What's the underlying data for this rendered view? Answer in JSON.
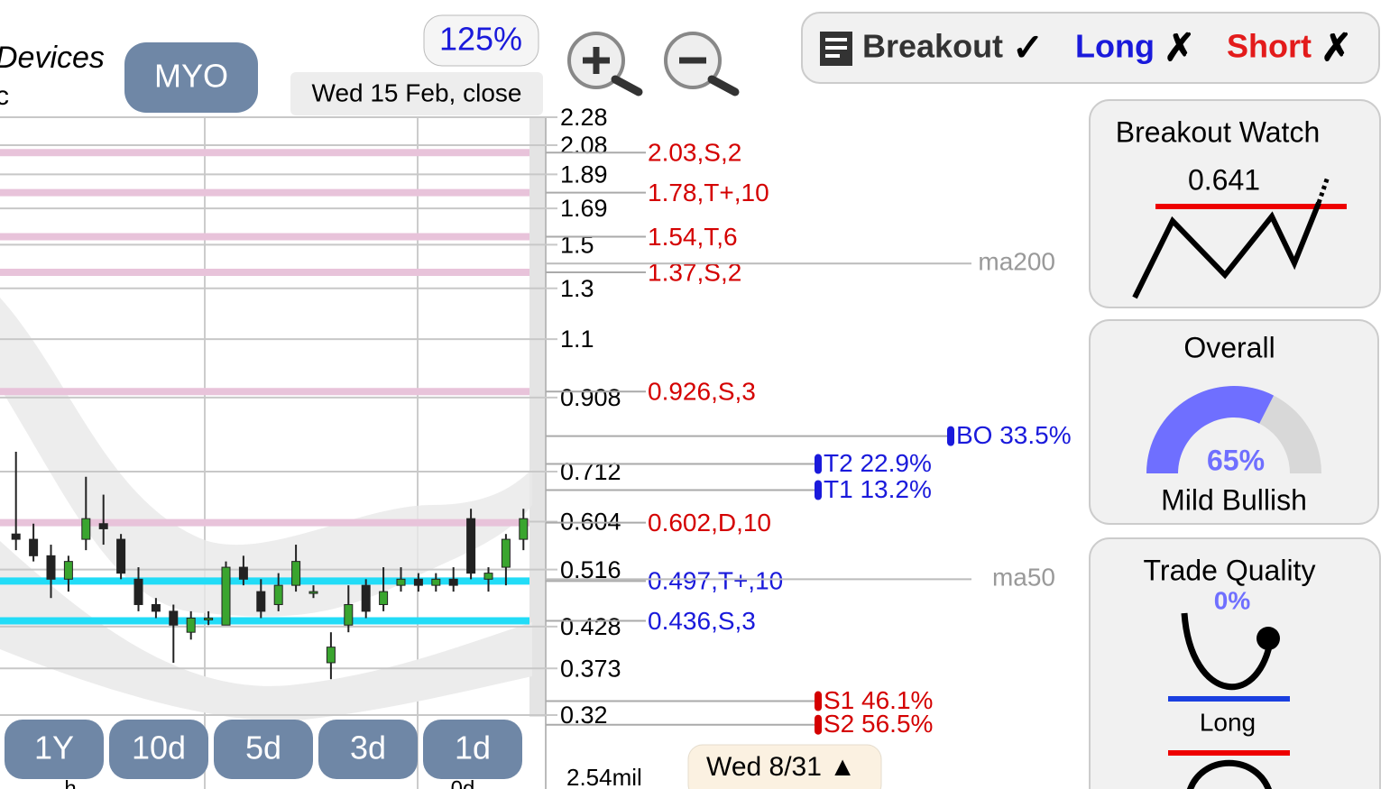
{
  "header": {
    "name_partial": "Devices",
    "name_partial_2": "c",
    "symbol": "MYO",
    "zoom": "125%",
    "date": "Wed 15 Feb, close"
  },
  "signals": [
    {
      "label": "Breakout",
      "mark": "✓",
      "color": "#333333"
    },
    {
      "label": "Long",
      "mark": "✗",
      "color": "#1a1adb"
    },
    {
      "label": "Short",
      "mark": "✗",
      "color": "#e31b1b"
    }
  ],
  "chart": {
    "scale": "log",
    "ylim": [
      0.32,
      2.28
    ],
    "yticks": [
      2.28,
      2.08,
      1.89,
      1.69,
      1.5,
      1.3,
      1.1,
      0.908,
      0.712,
      0.604,
      0.516,
      0.428,
      0.373,
      0.32
    ],
    "candles": [
      {
        "open": 0.58,
        "high": 0.76,
        "low": 0.55,
        "close": 0.57
      },
      {
        "open": 0.57,
        "high": 0.6,
        "low": 0.53,
        "close": 0.54
      },
      {
        "open": 0.54,
        "high": 0.56,
        "low": 0.47,
        "close": 0.5
      },
      {
        "open": 0.5,
        "high": 0.54,
        "low": 0.48,
        "close": 0.53
      },
      {
        "open": 0.57,
        "high": 0.7,
        "low": 0.55,
        "close": 0.61
      },
      {
        "open": 0.6,
        "high": 0.66,
        "low": 0.56,
        "close": 0.59
      },
      {
        "open": 0.57,
        "high": 0.58,
        "low": 0.5,
        "close": 0.51
      },
      {
        "open": 0.5,
        "high": 0.52,
        "low": 0.45,
        "close": 0.46
      },
      {
        "open": 0.46,
        "high": 0.47,
        "low": 0.44,
        "close": 0.45
      },
      {
        "open": 0.45,
        "high": 0.46,
        "low": 0.38,
        "close": 0.43
      },
      {
        "open": 0.42,
        "high": 0.45,
        "low": 0.41,
        "close": 0.44
      },
      {
        "open": 0.44,
        "high": 0.45,
        "low": 0.43,
        "close": 0.44
      },
      {
        "open": 0.43,
        "high": 0.53,
        "low": 0.43,
        "close": 0.52
      },
      {
        "open": 0.52,
        "high": 0.54,
        "low": 0.49,
        "close": 0.5
      },
      {
        "open": 0.48,
        "high": 0.5,
        "low": 0.44,
        "close": 0.45
      },
      {
        "open": 0.46,
        "high": 0.51,
        "low": 0.45,
        "close": 0.49
      },
      {
        "open": 0.49,
        "high": 0.56,
        "low": 0.48,
        "close": 0.53
      },
      {
        "open": 0.48,
        "high": 0.49,
        "low": 0.47,
        "close": 0.48
      },
      {
        "open": 0.38,
        "high": 0.42,
        "low": 0.36,
        "close": 0.4
      },
      {
        "open": 0.43,
        "high": 0.49,
        "low": 0.42,
        "close": 0.46
      },
      {
        "open": 0.49,
        "high": 0.5,
        "low": 0.44,
        "close": 0.45
      },
      {
        "open": 0.46,
        "high": 0.52,
        "low": 0.45,
        "close": 0.48
      },
      {
        "open": 0.49,
        "high": 0.52,
        "low": 0.48,
        "close": 0.5
      },
      {
        "open": 0.5,
        "high": 0.51,
        "low": 0.48,
        "close": 0.49
      },
      {
        "open": 0.49,
        "high": 0.51,
        "low": 0.48,
        "close": 0.5
      },
      {
        "open": 0.5,
        "high": 0.52,
        "low": 0.48,
        "close": 0.49
      },
      {
        "open": 0.61,
        "high": 0.63,
        "low": 0.5,
        "close": 0.51
      },
      {
        "open": 0.5,
        "high": 0.52,
        "low": 0.48,
        "close": 0.51
      },
      {
        "open": 0.52,
        "high": 0.58,
        "low": 0.49,
        "close": 0.57
      },
      {
        "open": 0.57,
        "high": 0.63,
        "low": 0.55,
        "close": 0.61
      }
    ],
    "levels": [
      {
        "label": "2.03,S,2",
        "value": 2.03,
        "line_color": "#e8c3da",
        "text_color": "#d40000"
      },
      {
        "label": "1.78,T+,10",
        "value": 1.78,
        "line_color": "#e8c3da",
        "text_color": "#d40000"
      },
      {
        "label": "1.54,T,6",
        "value": 1.54,
        "line_color": "#e8c3da",
        "text_color": "#d40000"
      },
      {
        "label": "1.37,S,2",
        "value": 1.37,
        "line_color": "#e8c3da",
        "text_color": "#d40000"
      },
      {
        "label": "0.926,S,3",
        "value": 0.926,
        "line_color": "#e8c3da",
        "text_color": "#d40000"
      },
      {
        "label": "0.602,D,10",
        "value": 0.602,
        "line_color": "#e8c3da",
        "text_color": "#d40000"
      },
      {
        "label": "0.497,T+,10",
        "value": 0.497,
        "line_color": "#22dcf7",
        "text_color": "#1a1adb"
      },
      {
        "label": "0.436,S,3",
        "value": 0.436,
        "line_color": "#22dcf7",
        "text_color": "#1a1adb"
      }
    ],
    "moving_averages": [
      {
        "name": "ma200",
        "value": 1.41
      },
      {
        "name": "ma50",
        "value": 0.5
      }
    ],
    "targets": [
      {
        "label": "BO 33.5%",
        "value": 0.8,
        "color": "#1a1adb",
        "end": 1050
      },
      {
        "label": "T2 22.9%",
        "value": 0.73,
        "color": "#1a1adb",
        "end": 903
      },
      {
        "label": "T1 13.2%",
        "value": 0.67,
        "color": "#1a1adb",
        "end": 903
      },
      {
        "label": "S1 46.1%",
        "value": 0.335,
        "color": "#d40000",
        "end": 903
      },
      {
        "label": "S2 56.5%",
        "value": 0.31,
        "color": "#d40000",
        "end": 903
      }
    ],
    "volume": "2.54mil",
    "ranges": [
      "1Y",
      "10d",
      "5d",
      "3d",
      "1d"
    ],
    "date_badge": "Wed 8/31 ▲",
    "bottom_labels": [
      "h",
      "0d"
    ]
  },
  "panels": {
    "breakout_watch": {
      "title": "Breakout Watch",
      "value": 0.641
    },
    "overall": {
      "title": "Overall",
      "percent": {
        "value": 65,
        "label": "65%"
      },
      "verdict": "Mild Bullish"
    },
    "trade_quality": {
      "title": "Trade Quality",
      "percent": {
        "value": 0,
        "label": "0%"
      },
      "side": "Long"
    }
  }
}
